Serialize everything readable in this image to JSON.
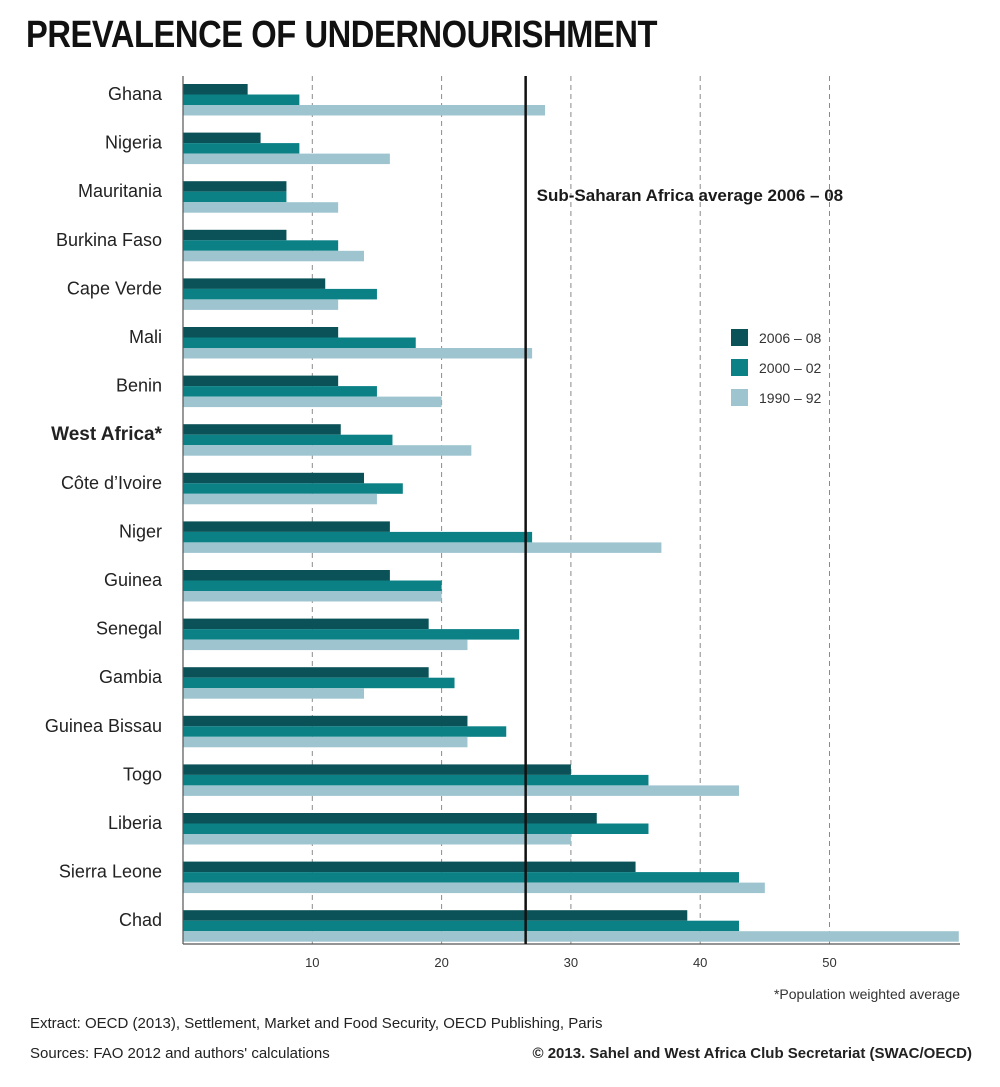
{
  "chart_data": {
    "type": "bar",
    "orientation": "horizontal",
    "title": "PREVALENCE OF UNDERNOURISHMENT",
    "categories": [
      "Ghana",
      "Nigeria",
      "Mauritania",
      "Burkina Faso",
      "Cape Verde",
      "Mali",
      "Benin",
      "West Africa*",
      "Côte d’Ivoire",
      "Niger",
      "Guinea",
      "Senegal",
      "Gambia",
      "Guinea Bissau",
      "Togo",
      "Liberia",
      "Sierra Leone",
      "Chad"
    ],
    "series": [
      {
        "name": "2006 – 08",
        "color": "#0a5257",
        "values": [
          5,
          6,
          8,
          8,
          11,
          12,
          12,
          12.2,
          14,
          16,
          16,
          19,
          19,
          22,
          30,
          32,
          35,
          39
        ]
      },
      {
        "name": "2000 – 02",
        "color": "#0b8186",
        "values": [
          9,
          9,
          8,
          12,
          15,
          18,
          15,
          16.2,
          17,
          27,
          20,
          26,
          21,
          25,
          36,
          36,
          43,
          43
        ]
      },
      {
        "name": "1990 – 92",
        "color": "#9ec5cf",
        "values": [
          28,
          16,
          12,
          14,
          12,
          27,
          20,
          22.3,
          15,
          37,
          20,
          22,
          14,
          22,
          43,
          30,
          45,
          60
        ]
      }
    ],
    "xticks": [
      10,
      20,
      30,
      40,
      50
    ],
    "xlim": [
      0,
      60
    ],
    "grid": "vertical dashed",
    "legend": "right",
    "reference_line": {
      "value": 26.5,
      "label": "Sub-Saharan Africa average 2006 – 08"
    }
  },
  "footer": {
    "footnote": "*Population weighted average",
    "extract": "Extract: OECD (2013), Settlement, Market and Food Security, OECD Publishing, Paris",
    "sources": "Sources: FAO 2012 and authors' calculations",
    "copyright": "© 2013. Sahel and West Africa Club Secretariat (SWAC/OECD)"
  }
}
